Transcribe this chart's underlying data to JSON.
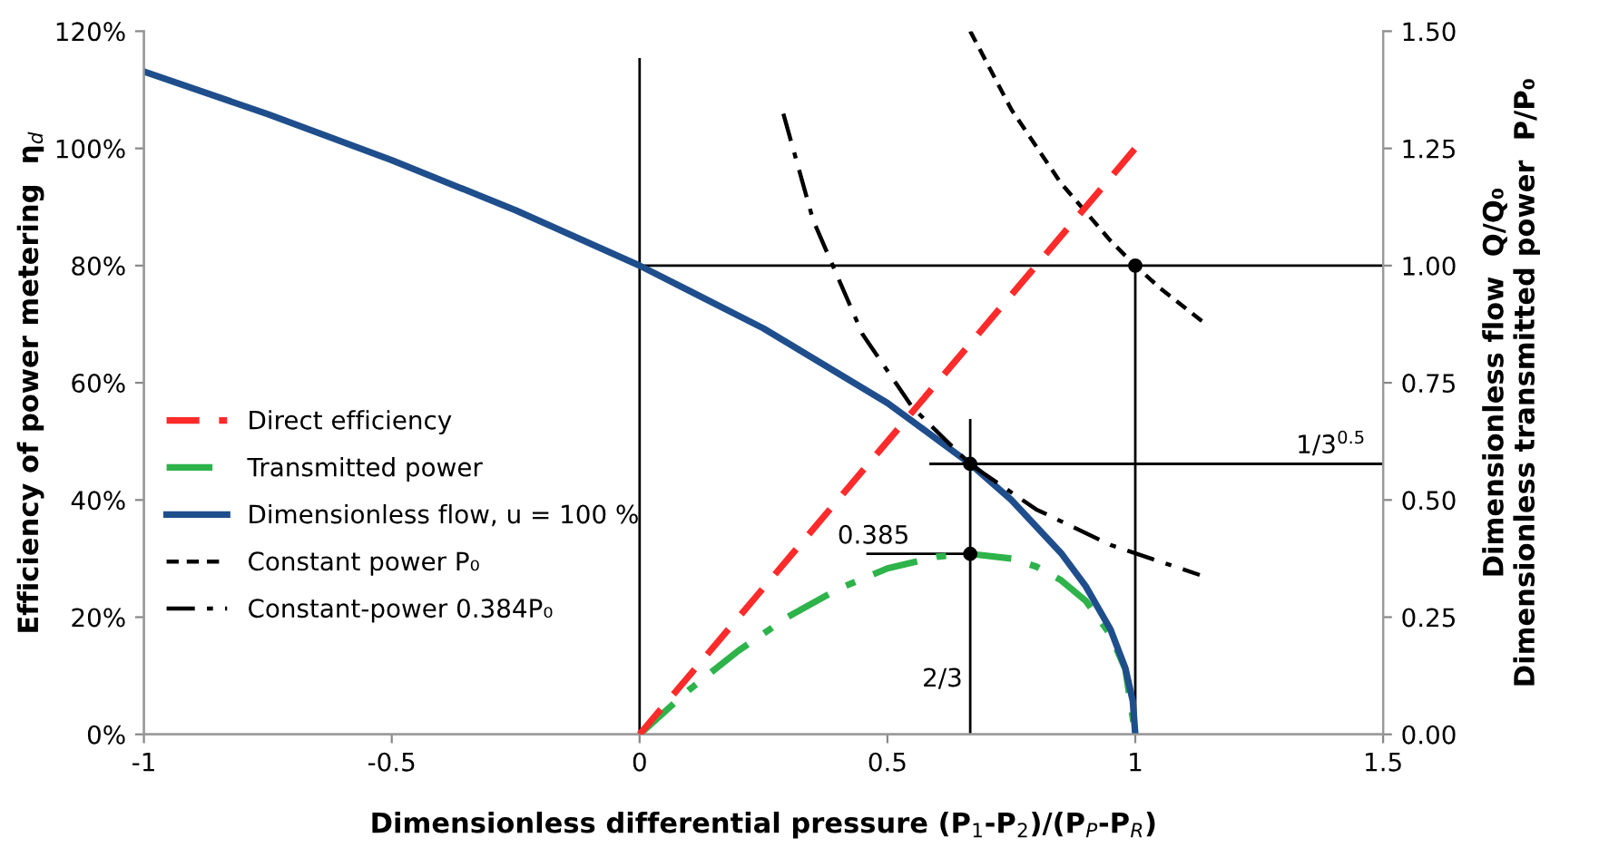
{
  "chart_data": {
    "type": "line",
    "xlabel": "Dimensionless differential pressure (P$_{1}$-P$_{2}$)/(P$_{P}$-P$_{R}$)",
    "ylabel": "Efficiency of power metering  η$_{d}$",
    "y2label": "Dimensionless flow  Q/Q₀\nDimensionless transmitted power  P/P₀",
    "xlim": [
      -1,
      1.5
    ],
    "xticks": [
      -1,
      -0.5,
      0,
      0.5,
      1,
      1.5
    ],
    "ylim": [
      0,
      120
    ],
    "yticks": [
      {
        "value": 0,
        "label": "0%"
      },
      {
        "value": 20,
        "label": "20%"
      },
      {
        "value": 40,
        "label": "40%"
      },
      {
        "value": 60,
        "label": "60%"
      },
      {
        "value": 80,
        "label": "80%"
      },
      {
        "value": 100,
        "label": "100%"
      },
      {
        "value": 120,
        "label": "120%"
      }
    ],
    "y2lim": [
      0,
      1.5
    ],
    "y2ticks": [
      {
        "value": 0,
        "label": "0.00"
      },
      {
        "value": 0.25,
        "label": "0.25"
      },
      {
        "value": 0.5,
        "label": "0.50"
      },
      {
        "value": 0.75,
        "label": "0.75"
      },
      {
        "value": 1,
        "label": "1.00"
      },
      {
        "value": 1.25,
        "label": "1.25"
      },
      {
        "value": 1.5,
        "label": "1.50"
      }
    ],
    "grid": false,
    "legend": "left",
    "marker": "none",
    "series": [
      {
        "name": "Direct efficiency",
        "color": "#ff2a2a",
        "line_style": "dashed",
        "x": [
          0,
          1
        ],
        "values": [
          0,
          100
        ]
      },
      {
        "name": "Transmitted power",
        "color": "#2db34a",
        "line_style": "dashdot",
        "axis": "y2",
        "x": [
          0,
          0.1,
          0.2,
          0.3,
          0.4,
          0.5,
          0.6,
          0.667,
          0.75,
          0.8,
          0.85,
          0.9,
          0.95,
          0.98,
          1
        ],
        "values": [
          0,
          0.095,
          0.179,
          0.251,
          0.31,
          0.354,
          0.379,
          0.385,
          0.375,
          0.358,
          0.329,
          0.285,
          0.212,
          0.139,
          0
        ]
      },
      {
        "name": "Dimensionless flow, u = 100 %",
        "color": "#1f4e8c",
        "line_style": "solid",
        "axis": "y2",
        "x": [
          -1,
          -0.75,
          -0.5,
          -0.25,
          0,
          0.25,
          0.5,
          0.667,
          0.75,
          0.85,
          0.9,
          0.95,
          0.98,
          0.995,
          1
        ],
        "values": [
          1.414,
          1.323,
          1.225,
          1.118,
          1.0,
          0.866,
          0.707,
          0.577,
          0.5,
          0.387,
          0.316,
          0.224,
          0.141,
          0.071,
          0
        ]
      },
      {
        "name": "Constant power P₀",
        "color": "#000000",
        "line_style": "dotted",
        "axis": "y2",
        "x": [
          0.667,
          0.75,
          0.85,
          0.95,
          1.0,
          1.05,
          1.145
        ],
        "values": [
          1.5,
          1.333,
          1.176,
          1.053,
          1.0,
          0.952,
          0.873
        ]
      },
      {
        "name": "Constant-power 0.384P₀",
        "color": "#000000",
        "line_style": "dashdot",
        "axis": "y2",
        "x": [
          0.29,
          0.35,
          0.45,
          0.55,
          0.667,
          0.8,
          0.95,
          1.13
        ],
        "values": [
          1.324,
          1.097,
          0.853,
          0.698,
          0.576,
          0.48,
          0.404,
          0.34
        ]
      },
      {
        "color": "#000000",
        "line_style": "solid",
        "axis": "y2",
        "x": [
          0,
          0
        ],
        "values": [
          0,
          1.44
        ]
      },
      {
        "color": "#000000",
        "line_style": "solid",
        "axis": "y2",
        "x": [
          0,
          1.5
        ],
        "values": [
          1.0,
          1.0
        ]
      },
      {
        "color": "#000000",
        "line_style": "solid",
        "axis": "y2",
        "x": [
          1,
          1
        ],
        "values": [
          0,
          1.0
        ]
      },
      {
        "color": "#000000",
        "line_style": "solid",
        "axis": "y2",
        "x": [
          0.587,
          1.5
        ],
        "values": [
          0.577,
          0.577
        ]
      },
      {
        "color": "#000000",
        "line_style": "solid",
        "axis": "y2",
        "x": [
          0.667,
          0.667
        ],
        "values": [
          0,
          0.67
        ]
      },
      {
        "color": "#000000",
        "line_style": "solid",
        "axis": "y2",
        "x": [
          0.46,
          0.667
        ],
        "values": [
          0.385,
          0.385
        ]
      },
      {
        "type": "scatter",
        "marker": "circle",
        "color": "#000000",
        "axis": "y2",
        "x": [
          0.667,
          0.667,
          1
        ],
        "values": [
          0.577,
          0.385,
          1.0
        ]
      }
    ],
    "annotations": [
      {
        "text": "1/3$^{0.5}$",
        "x": 1.48,
        "y": 46.2
      },
      {
        "text": "0.385",
        "x": 0.56,
        "y": 30.8
      },
      {
        "text": "2/3",
        "x": 0.667,
        "y": 6.4
      }
    ]
  }
}
